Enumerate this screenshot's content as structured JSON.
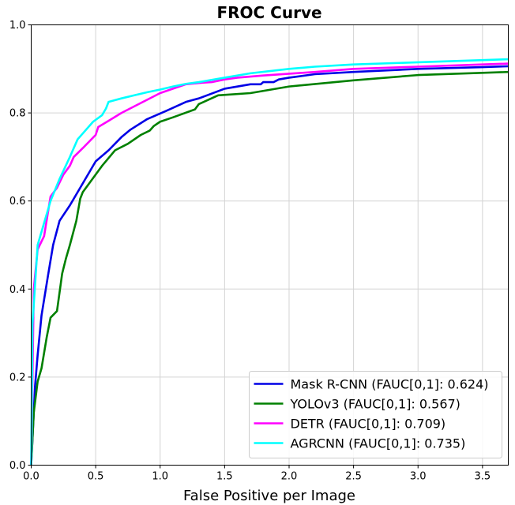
{
  "chart_data": {
    "type": "line",
    "title": "FROC Curve",
    "xlabel": "False Positive per Image",
    "ylabel": "",
    "xlim": [
      0,
      3.7
    ],
    "ylim": [
      0,
      1.0
    ],
    "x_ticks": [
      "0.0",
      "0.5",
      "1.0",
      "1.5",
      "2.0",
      "2.5",
      "3.0",
      "3.5"
    ],
    "y_ticks": [
      "0.0",
      "0.2",
      "0.4",
      "0.6",
      "0.8",
      "1.0"
    ],
    "grid": true,
    "legend_position": "bottom-right",
    "series": [
      {
        "name": "Mask R-CNN (FAUC[0,1]: 0.624)",
        "color": "#0000e6",
        "x": [
          0.0,
          0.03,
          0.05,
          0.08,
          0.13,
          0.17,
          0.22,
          0.3,
          0.37,
          0.44,
          0.5,
          0.6,
          0.7,
          0.77,
          0.9,
          1.05,
          1.2,
          1.3,
          1.5,
          1.7,
          1.78,
          1.8,
          1.88,
          1.92,
          2.0,
          2.2,
          2.5,
          3.0,
          3.5,
          3.7
        ],
        "y": [
          0.0,
          0.18,
          0.25,
          0.34,
          0.43,
          0.5,
          0.555,
          0.59,
          0.625,
          0.66,
          0.69,
          0.715,
          0.745,
          0.762,
          0.786,
          0.805,
          0.825,
          0.833,
          0.855,
          0.865,
          0.865,
          0.87,
          0.87,
          0.876,
          0.88,
          0.888,
          0.893,
          0.9,
          0.904,
          0.906
        ]
      },
      {
        "name": "YOLOv3 (FAUC[0,1]: 0.567)",
        "color": "#008000",
        "x": [
          0.0,
          0.02,
          0.05,
          0.08,
          0.12,
          0.15,
          0.2,
          0.24,
          0.27,
          0.3,
          0.35,
          0.38,
          0.4,
          0.45,
          0.55,
          0.65,
          0.75,
          0.85,
          0.92,
          0.95,
          1.0,
          1.1,
          1.27,
          1.3,
          1.45,
          1.7,
          2.0,
          2.5,
          3.0,
          3.5,
          3.7
        ],
        "y": [
          0.0,
          0.12,
          0.19,
          0.22,
          0.29,
          0.335,
          0.35,
          0.435,
          0.47,
          0.5,
          0.555,
          0.605,
          0.62,
          0.64,
          0.68,
          0.715,
          0.73,
          0.75,
          0.76,
          0.77,
          0.78,
          0.79,
          0.808,
          0.82,
          0.84,
          0.845,
          0.86,
          0.874,
          0.886,
          0.891,
          0.893
        ]
      },
      {
        "name": "DETR (FAUC[0,1]: 0.709)",
        "color": "#ff00ff",
        "x": [
          0.0,
          0.02,
          0.05,
          0.1,
          0.15,
          0.2,
          0.25,
          0.3,
          0.33,
          0.4,
          0.5,
          0.52,
          0.6,
          0.7,
          0.8,
          0.9,
          1.0,
          1.1,
          1.2,
          1.3,
          1.4,
          1.5,
          1.6,
          1.8,
          2.0,
          2.2,
          2.5,
          3.0,
          3.5,
          3.7
        ],
        "y": [
          0.0,
          0.4,
          0.49,
          0.52,
          0.61,
          0.63,
          0.66,
          0.68,
          0.7,
          0.72,
          0.75,
          0.768,
          0.782,
          0.8,
          0.815,
          0.83,
          0.845,
          0.855,
          0.865,
          0.868,
          0.87,
          0.876,
          0.88,
          0.885,
          0.889,
          0.893,
          0.9,
          0.905,
          0.91,
          0.912
        ]
      },
      {
        "name": "AGRCNN (FAUC[0,1]: 0.735)",
        "color": "#00ffff",
        "x": [
          0.0,
          0.01,
          0.05,
          0.1,
          0.15,
          0.22,
          0.3,
          0.36,
          0.42,
          0.48,
          0.55,
          0.58,
          0.6,
          0.7,
          0.8,
          0.9,
          1.0,
          1.1,
          1.2,
          1.3,
          1.5,
          1.7,
          2.0,
          2.2,
          2.5,
          3.0,
          3.5,
          3.7
        ],
        "y": [
          0.0,
          0.32,
          0.5,
          0.55,
          0.6,
          0.65,
          0.7,
          0.74,
          0.76,
          0.78,
          0.795,
          0.81,
          0.825,
          0.833,
          0.84,
          0.847,
          0.853,
          0.86,
          0.866,
          0.87,
          0.88,
          0.89,
          0.9,
          0.905,
          0.91,
          0.915,
          0.92,
          0.922
        ]
      }
    ]
  }
}
